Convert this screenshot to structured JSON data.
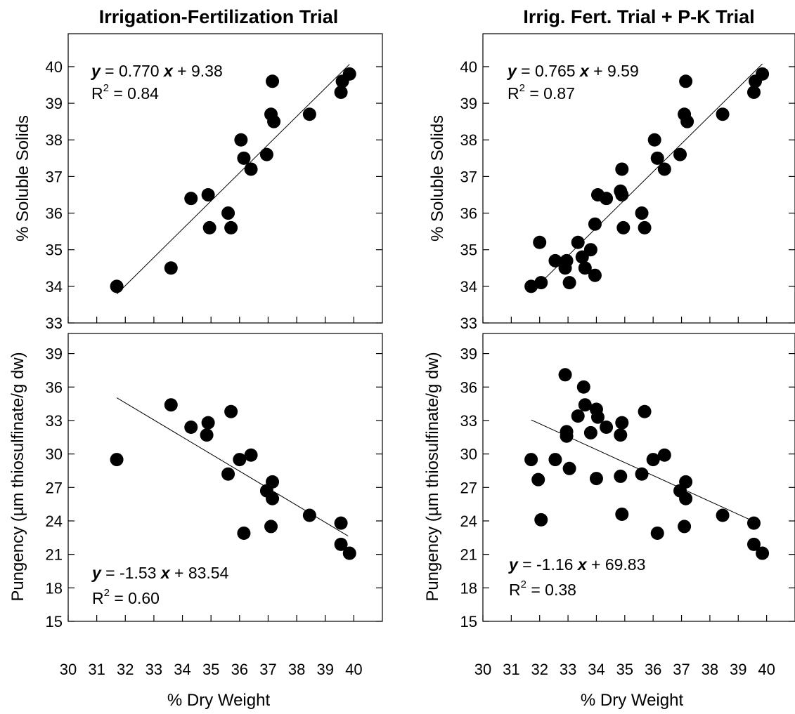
{
  "figure": {
    "left_title": "Irrigation-Fertilization Trial",
    "right_title": "Irrig. Fert. Trial + P-K Trial",
    "xlabel": "% Dry Weight",
    "ylabel_top": "% Soluble Solids",
    "ylabel_bottom": "Pungency (µm thiosulfinate/g dw)"
  },
  "chart_data": [
    {
      "type": "scatter",
      "title": "Irrigation-Fertilization Trial",
      "xlabel": "",
      "ylabel": "% Soluble Solids",
      "xlim": [
        30,
        41
      ],
      "ylim": [
        33,
        40.9
      ],
      "x_ticks": [
        30,
        31,
        32,
        33,
        34,
        35,
        36,
        37,
        38,
        39,
        40
      ],
      "y_ticks": [
        33,
        34,
        35,
        36,
        37,
        38,
        39,
        40
      ],
      "equation": {
        "y_label": "y",
        "x_label": "x",
        "text_mid": " = 0.770 ",
        "text_end": " + 9.38",
        "r2_pre": "R",
        "r2_sup": "2",
        "r2_post": " = 0.84",
        "position": "top-left"
      },
      "fit": {
        "slope": 0.77,
        "intercept": 9.38,
        "x_range": [
          31.7,
          39.85
        ]
      },
      "points": [
        {
          "x": 31.7,
          "y": 34.0
        },
        {
          "x": 33.6,
          "y": 34.5
        },
        {
          "x": 34.3,
          "y": 36.4
        },
        {
          "x": 34.9,
          "y": 36.5
        },
        {
          "x": 34.95,
          "y": 35.6
        },
        {
          "x": 35.6,
          "y": 36.0
        },
        {
          "x": 35.7,
          "y": 35.6
        },
        {
          "x": 36.05,
          "y": 38.0
        },
        {
          "x": 36.15,
          "y": 37.5
        },
        {
          "x": 36.4,
          "y": 37.2
        },
        {
          "x": 36.95,
          "y": 37.6
        },
        {
          "x": 37.1,
          "y": 38.7
        },
        {
          "x": 37.15,
          "y": 39.6
        },
        {
          "x": 37.2,
          "y": 38.5
        },
        {
          "x": 38.45,
          "y": 38.7
        },
        {
          "x": 39.55,
          "y": 39.3
        },
        {
          "x": 39.6,
          "y": 39.6
        },
        {
          "x": 39.85,
          "y": 39.8
        }
      ]
    },
    {
      "type": "scatter",
      "title": "Irrig. Fert. Trial + P-K Trial",
      "xlabel": "",
      "ylabel": "% Soluble Solids",
      "xlim": [
        30,
        41
      ],
      "ylim": [
        33,
        40.9
      ],
      "x_ticks": [
        30,
        31,
        32,
        33,
        34,
        35,
        36,
        37,
        38,
        39,
        40
      ],
      "y_ticks": [
        33,
        34,
        35,
        36,
        37,
        38,
        39,
        40
      ],
      "equation": {
        "y_label": "y",
        "x_label": "x",
        "text_mid": " = 0.765 ",
        "text_end": " + 9.59",
        "r2_pre": "R",
        "r2_sup": "2",
        "r2_post": " = 0.87",
        "position": "top-left"
      },
      "fit": {
        "slope": 0.765,
        "intercept": 9.59,
        "x_range": [
          31.8,
          39.85
        ]
      },
      "points": [
        {
          "x": 31.7,
          "y": 34.0
        },
        {
          "x": 32.0,
          "y": 35.2
        },
        {
          "x": 32.05,
          "y": 34.1
        },
        {
          "x": 32.55,
          "y": 34.7
        },
        {
          "x": 32.9,
          "y": 34.5
        },
        {
          "x": 32.95,
          "y": 34.7
        },
        {
          "x": 33.05,
          "y": 34.1
        },
        {
          "x": 33.35,
          "y": 35.2
        },
        {
          "x": 33.5,
          "y": 34.8
        },
        {
          "x": 33.6,
          "y": 34.5
        },
        {
          "x": 33.8,
          "y": 35.0
        },
        {
          "x": 33.95,
          "y": 34.3
        },
        {
          "x": 33.95,
          "y": 35.7
        },
        {
          "x": 34.05,
          "y": 36.5
        },
        {
          "x": 34.35,
          "y": 36.4
        },
        {
          "x": 34.85,
          "y": 36.6
        },
        {
          "x": 34.9,
          "y": 37.2
        },
        {
          "x": 34.9,
          "y": 36.5
        },
        {
          "x": 34.95,
          "y": 35.6
        },
        {
          "x": 35.6,
          "y": 36.0
        },
        {
          "x": 35.7,
          "y": 35.6
        },
        {
          "x": 36.05,
          "y": 38.0
        },
        {
          "x": 36.15,
          "y": 37.5
        },
        {
          "x": 36.4,
          "y": 37.2
        },
        {
          "x": 36.95,
          "y": 37.6
        },
        {
          "x": 37.1,
          "y": 38.7
        },
        {
          "x": 37.15,
          "y": 39.6
        },
        {
          "x": 37.2,
          "y": 38.5
        },
        {
          "x": 38.45,
          "y": 38.7
        },
        {
          "x": 39.55,
          "y": 39.3
        },
        {
          "x": 39.6,
          "y": 39.6
        },
        {
          "x": 39.85,
          "y": 39.8
        }
      ]
    },
    {
      "type": "scatter",
      "title": "",
      "xlabel": "% Dry Weight",
      "ylabel": "Pungency (µm thiosulfinate/g dw)",
      "xlim": [
        30,
        41
      ],
      "ylim": [
        15,
        40.8
      ],
      "x_ticks": [
        30,
        31,
        32,
        33,
        34,
        35,
        36,
        37,
        38,
        39,
        40
      ],
      "y_ticks": [
        15,
        18,
        21,
        24,
        27,
        30,
        33,
        36,
        39
      ],
      "equation": {
        "y_label": "y",
        "x_label": "x",
        "text_mid": " = -1.53 ",
        "text_end": " + 83.54",
        "r2_pre": "R",
        "r2_sup": "2",
        "r2_post": " = 0.60",
        "position": "bottom-left"
      },
      "fit": {
        "slope": -1.53,
        "intercept": 83.54,
        "x_range": [
          31.7,
          39.8
        ]
      },
      "points": [
        {
          "x": 31.7,
          "y": 29.5
        },
        {
          "x": 33.6,
          "y": 34.4
        },
        {
          "x": 34.3,
          "y": 32.4
        },
        {
          "x": 34.9,
          "y": 32.8
        },
        {
          "x": 34.85,
          "y": 31.7
        },
        {
          "x": 35.6,
          "y": 28.2
        },
        {
          "x": 35.7,
          "y": 33.8
        },
        {
          "x": 36.0,
          "y": 29.5
        },
        {
          "x": 36.4,
          "y": 29.9
        },
        {
          "x": 36.15,
          "y": 22.9
        },
        {
          "x": 36.95,
          "y": 26.7
        },
        {
          "x": 37.15,
          "y": 27.5
        },
        {
          "x": 37.15,
          "y": 26.0
        },
        {
          "x": 37.1,
          "y": 23.5
        },
        {
          "x": 38.45,
          "y": 24.5
        },
        {
          "x": 39.55,
          "y": 23.8
        },
        {
          "x": 39.55,
          "y": 21.9
        },
        {
          "x": 39.85,
          "y": 21.1
        }
      ]
    },
    {
      "type": "scatter",
      "title": "",
      "xlabel": "% Dry Weight",
      "ylabel": "Pungency (µm thiosulfinate/g dw)",
      "xlim": [
        30,
        41
      ],
      "ylim": [
        15,
        40.8
      ],
      "x_ticks": [
        30,
        31,
        32,
        33,
        34,
        35,
        36,
        37,
        38,
        39,
        40
      ],
      "y_ticks": [
        15,
        18,
        21,
        24,
        27,
        30,
        33,
        36,
        39
      ],
      "equation": {
        "y_label": "y",
        "x_label": "x",
        "text_mid": " = -1.16 ",
        "text_end": " + 69.83",
        "r2_pre": "R",
        "r2_sup": "2",
        "r2_post": " = 0.38",
        "position": "bottom-left"
      },
      "fit": {
        "slope": -1.16,
        "intercept": 69.83,
        "x_range": [
          31.7,
          39.6
        ]
      },
      "points": [
        {
          "x": 31.7,
          "y": 29.5
        },
        {
          "x": 31.95,
          "y": 27.7
        },
        {
          "x": 32.05,
          "y": 24.1
        },
        {
          "x": 32.55,
          "y": 29.5
        },
        {
          "x": 32.9,
          "y": 37.1
        },
        {
          "x": 32.95,
          "y": 31.6
        },
        {
          "x": 32.95,
          "y": 32.0
        },
        {
          "x": 33.05,
          "y": 28.7
        },
        {
          "x": 33.35,
          "y": 33.4
        },
        {
          "x": 33.55,
          "y": 36.0
        },
        {
          "x": 33.6,
          "y": 34.4
        },
        {
          "x": 33.8,
          "y": 31.9
        },
        {
          "x": 34.0,
          "y": 34.0
        },
        {
          "x": 34.05,
          "y": 33.3
        },
        {
          "x": 34.0,
          "y": 27.8
        },
        {
          "x": 34.35,
          "y": 32.4
        },
        {
          "x": 34.9,
          "y": 32.8
        },
        {
          "x": 34.85,
          "y": 31.7
        },
        {
          "x": 34.85,
          "y": 28.0
        },
        {
          "x": 34.9,
          "y": 24.6
        },
        {
          "x": 35.6,
          "y": 28.2
        },
        {
          "x": 35.7,
          "y": 33.8
        },
        {
          "x": 36.0,
          "y": 29.5
        },
        {
          "x": 36.4,
          "y": 29.9
        },
        {
          "x": 36.15,
          "y": 22.9
        },
        {
          "x": 36.95,
          "y": 26.7
        },
        {
          "x": 37.15,
          "y": 27.5
        },
        {
          "x": 37.15,
          "y": 26.0
        },
        {
          "x": 37.1,
          "y": 23.5
        },
        {
          "x": 38.45,
          "y": 24.5
        },
        {
          "x": 39.55,
          "y": 23.8
        },
        {
          "x": 39.55,
          "y": 21.9
        },
        {
          "x": 39.85,
          "y": 21.1
        }
      ]
    }
  ]
}
